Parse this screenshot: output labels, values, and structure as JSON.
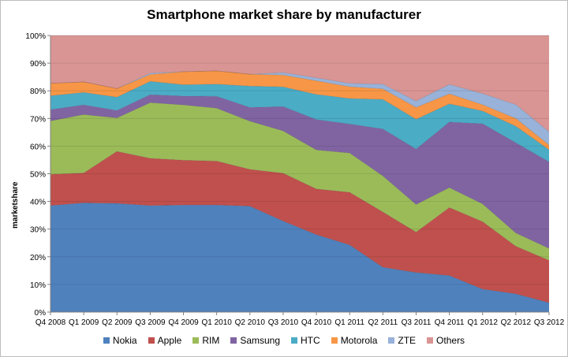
{
  "chart_data": {
    "type": "area",
    "stacked": true,
    "title": "Smartphone market share by manufacturer",
    "xlabel": "",
    "ylabel": "marketshare",
    "ylim": [
      0,
      100
    ],
    "yticks": [
      "0%",
      "10%",
      "20%",
      "30%",
      "40%",
      "50%",
      "60%",
      "70%",
      "80%",
      "90%",
      "100%"
    ],
    "grid": true,
    "legend_position": "bottom",
    "categories": [
      "Q4 2008",
      "Q1 2009",
      "Q2 2009",
      "Q3 2009",
      "Q4 2009",
      "Q1 2010",
      "Q2 2010",
      "Q3 2010",
      "Q4 2010",
      "Q1 2011",
      "Q2 2011",
      "Q3 2011",
      "Q4 2011",
      "Q1 2012",
      "Q2 2012",
      "Q3 2012"
    ],
    "series": [
      {
        "name": "Nokia",
        "color": "#4f81bd",
        "values": [
          38.5,
          39.5,
          39.3,
          38.5,
          38.7,
          38.7,
          38.3,
          32.9,
          28.0,
          24.3,
          16.2,
          14.3,
          13.2,
          8.3,
          6.6,
          3.4
        ]
      },
      {
        "name": "Apple",
        "color": "#c0504d",
        "values": [
          11.3,
          10.8,
          18.8,
          17.1,
          16.2,
          15.9,
          13.3,
          17.3,
          16.5,
          19.0,
          20.0,
          14.6,
          24.6,
          24.4,
          17.2,
          15.3
        ]
      },
      {
        "name": "RIM",
        "color": "#9bbb59",
        "values": [
          19.3,
          21.1,
          12.1,
          20.1,
          20.0,
          19.1,
          17.4,
          15.3,
          14.1,
          14.2,
          13.0,
          10.0,
          7.2,
          6.4,
          4.8,
          4.3
        ]
      },
      {
        "name": "Samsung",
        "color": "#8064a2",
        "values": [
          4.1,
          3.5,
          2.7,
          2.9,
          3.2,
          4.3,
          5.0,
          8.8,
          11.0,
          10.5,
          17.0,
          20.0,
          23.7,
          29.0,
          32.6,
          31.3
        ]
      },
      {
        "name": "HTC",
        "color": "#4bacc6",
        "values": [
          5.0,
          4.5,
          4.8,
          4.8,
          4.1,
          4.4,
          7.7,
          7.1,
          9.1,
          9.2,
          10.7,
          10.8,
          6.6,
          4.6,
          6.0,
          4.4
        ]
      },
      {
        "name": "Motorola",
        "color": "#f79646",
        "values": [
          4.5,
          3.8,
          3.1,
          2.5,
          4.7,
          4.8,
          4.3,
          4.3,
          4.9,
          4.3,
          3.8,
          4.3,
          3.6,
          2.3,
          2.8,
          1.7
        ]
      },
      {
        "name": "ZTE",
        "color": "#98b2d9",
        "values": [
          0,
          0,
          0,
          0.5,
          0,
          0,
          0,
          0.9,
          1.1,
          1.2,
          1.7,
          2.3,
          3.4,
          4.0,
          5.0,
          4.8
        ]
      },
      {
        "name": "Others",
        "color": "#d99594",
        "values": [
          17.3,
          16.8,
          19.2,
          13.6,
          13.1,
          12.8,
          14.0,
          13.4,
          15.3,
          17.3,
          17.6,
          23.7,
          17.7,
          21.0,
          25.0,
          34.8
        ]
      }
    ]
  }
}
